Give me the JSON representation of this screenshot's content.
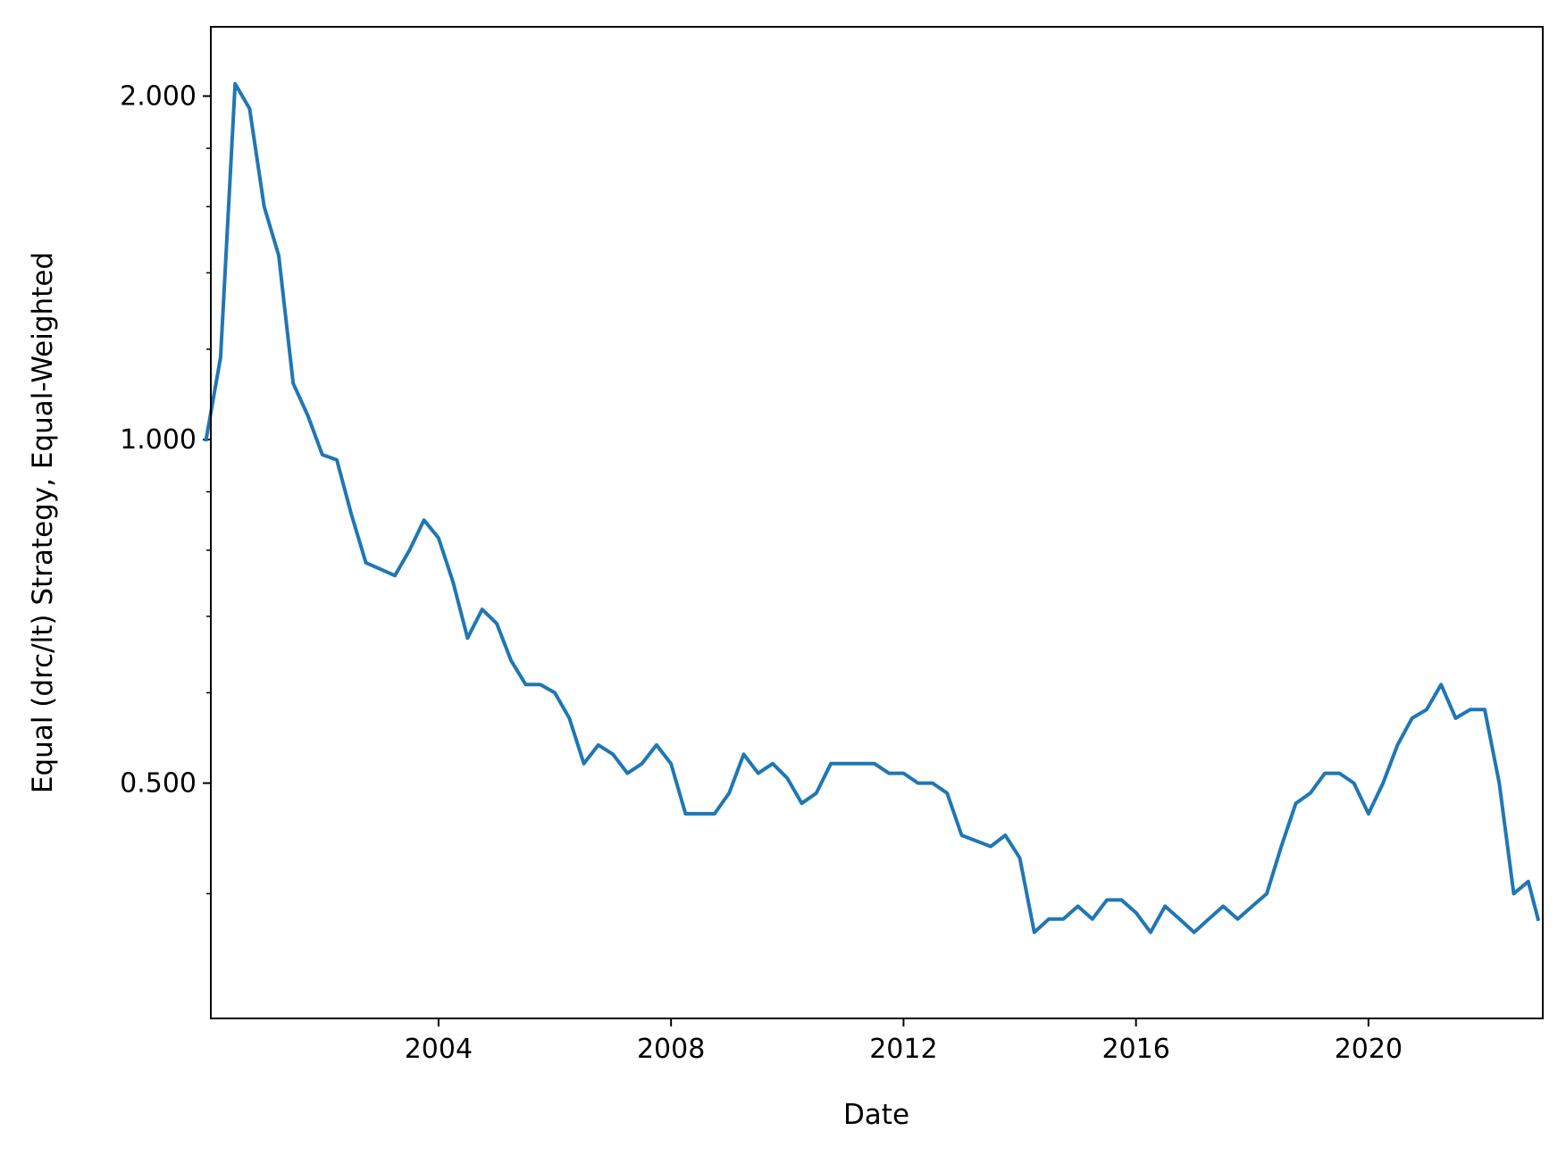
{
  "chart_data": {
    "type": "line",
    "title": "",
    "xlabel": "Date",
    "ylabel": "Equal (drc/lt) Strategy, Equal-Weighted",
    "y_scale": "log",
    "ylim": [
      0.311,
      2.3
    ],
    "xlim": [
      "2000-01-31",
      "2022-12-31"
    ],
    "grid": false,
    "colors": {
      "line": "#1f77b4",
      "axes": "#000000",
      "background": "#ffffff"
    },
    "x_ticks": [
      "2004",
      "2008",
      "2012",
      "2016",
      "2020"
    ],
    "y_major_ticks": [
      "0.500",
      "1.000",
      "2.000"
    ],
    "y_minor_ticks": [
      0.4,
      0.6,
      0.7,
      0.8,
      0.9,
      1.2,
      1.4,
      1.6,
      1.8
    ],
    "series": [
      {
        "x": [
          "2000-01",
          "2000-04",
          "2000-07",
          "2000-10",
          "2001-01",
          "2001-04",
          "2001-07",
          "2001-10",
          "2002-01",
          "2002-04",
          "2002-07",
          "2002-10",
          "2003-01",
          "2003-04",
          "2003-07",
          "2003-10",
          "2004-01",
          "2004-04",
          "2004-07",
          "2004-10",
          "2005-01",
          "2005-04",
          "2005-07",
          "2005-10",
          "2006-01",
          "2006-04",
          "2006-07",
          "2006-10",
          "2007-01",
          "2007-04",
          "2007-07",
          "2007-10",
          "2008-01",
          "2008-04",
          "2008-07",
          "2008-10",
          "2009-01",
          "2009-04",
          "2009-07",
          "2009-10",
          "2010-01",
          "2010-04",
          "2010-07",
          "2010-10",
          "2011-01",
          "2011-04",
          "2011-07",
          "2011-10",
          "2012-01",
          "2012-04",
          "2012-07",
          "2012-10",
          "2013-01",
          "2013-04",
          "2013-07",
          "2013-10",
          "2014-01",
          "2014-04",
          "2014-07",
          "2014-10",
          "2015-01",
          "2015-04",
          "2015-07",
          "2015-10",
          "2016-01",
          "2016-04",
          "2016-07",
          "2016-10",
          "2017-01",
          "2017-04",
          "2017-07",
          "2017-10",
          "2018-01",
          "2018-04",
          "2018-07",
          "2018-10",
          "2019-01",
          "2019-04",
          "2019-07",
          "2019-10",
          "2020-01",
          "2020-04",
          "2020-07",
          "2020-10",
          "2021-01",
          "2021-04",
          "2021-07",
          "2021-10",
          "2022-01",
          "2022-04",
          "2022-07",
          "2022-10",
          "2022-12"
        ],
        "y": [
          1.0,
          1.18,
          2.05,
          1.95,
          1.6,
          1.45,
          1.12,
          1.05,
          0.97,
          0.96,
          0.86,
          0.78,
          0.77,
          0.76,
          0.8,
          0.85,
          0.82,
          0.75,
          0.67,
          0.71,
          0.69,
          0.64,
          0.61,
          0.61,
          0.6,
          0.57,
          0.52,
          0.54,
          0.53,
          0.51,
          0.52,
          0.54,
          0.52,
          0.47,
          0.47,
          0.47,
          0.49,
          0.53,
          0.51,
          0.52,
          0.505,
          0.48,
          0.49,
          0.52,
          0.52,
          0.52,
          0.52,
          0.51,
          0.51,
          0.5,
          0.5,
          0.49,
          0.45,
          0.445,
          0.44,
          0.45,
          0.43,
          0.37,
          0.38,
          0.38,
          0.39,
          0.38,
          0.395,
          0.395,
          0.385,
          0.37,
          0.39,
          0.38,
          0.37,
          0.38,
          0.39,
          0.38,
          0.39,
          0.4,
          0.44,
          0.48,
          0.49,
          0.51,
          0.51,
          0.5,
          0.47,
          0.5,
          0.54,
          0.57,
          0.58,
          0.61,
          0.57,
          0.58,
          0.58,
          0.5,
          0.4,
          0.41,
          0.38
        ]
      }
    ]
  }
}
